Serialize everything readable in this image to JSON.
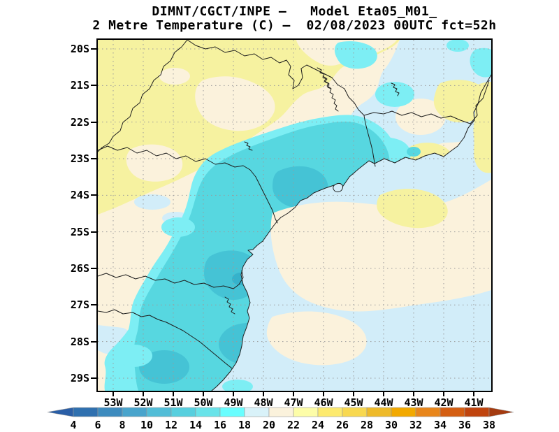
{
  "title": {
    "line1": "DIMNT/CGCT/INPE –   Model Eta05_M01_",
    "line2": "2 Metre Temperature (C) –  02/08/2023 00UTC fct=52h"
  },
  "axes": {
    "lat_labels": [
      "20S",
      "21S",
      "22S",
      "23S",
      "24S",
      "25S",
      "26S",
      "27S",
      "28S",
      "29S"
    ],
    "lon_labels": [
      "53W",
      "52W",
      "51W",
      "50W",
      "49W",
      "48W",
      "47W",
      "46W",
      "45W",
      "44W",
      "43W",
      "42W",
      "41W"
    ]
  },
  "chart_data": {
    "type": "heatmap",
    "title": "DIMNT/CGCT/INPE – Model Eta05_M01_",
    "subtitle": "2 Metre Temperature (C) – 02/08/2023 00UTC fct=52h",
    "variable": "2 Metre Temperature (C)",
    "model": "Eta05_M01_",
    "institution": "DIMNT/CGCT/INPE",
    "run_datetime": "02/08/2023 00UTC",
    "forecast_hour": "fct=52h",
    "lat_ticks": [
      "20S",
      "21S",
      "22S",
      "23S",
      "24S",
      "25S",
      "26S",
      "27S",
      "28S",
      "29S"
    ],
    "lon_ticks": [
      "53W",
      "52W",
      "51W",
      "50W",
      "49W",
      "48W",
      "47W",
      "46W",
      "45W",
      "44W",
      "43W",
      "42W",
      "41W"
    ],
    "legend_position": "bottom",
    "colorbar": {
      "units": "C",
      "tick_values": [
        4,
        6,
        8,
        10,
        12,
        14,
        16,
        18,
        20,
        22,
        24,
        26,
        28,
        30,
        32,
        34,
        36,
        38
      ],
      "segment_colors": [
        "#2f70af",
        "#3d8bbe",
        "#49a4cc",
        "#52bdd7",
        "#57cfde",
        "#69e3e9",
        "#69feff",
        "#d9f2f9",
        "#fbf2dc",
        "#fdfda8",
        "#fdea6e",
        "#f8d850",
        "#eeba2a",
        "#f2a900",
        "#e8861c",
        "#d45e12",
        "#c0440e"
      ],
      "below_min_color": "#2a5ea6",
      "above_max_color": "#a43b10"
    },
    "palette": {
      "yellow": "#f6f2a0",
      "cream": "#fbf2dc",
      "light_blue": "#d2edf9",
      "cyan": "#7deef4",
      "turquoise": "#57d7e0",
      "turquoise_dark": "#45c3d5",
      "turquoise_deep": "#36b2cb",
      "coastline": "#1d1d1d",
      "grid": "#9b9b9b"
    }
  }
}
